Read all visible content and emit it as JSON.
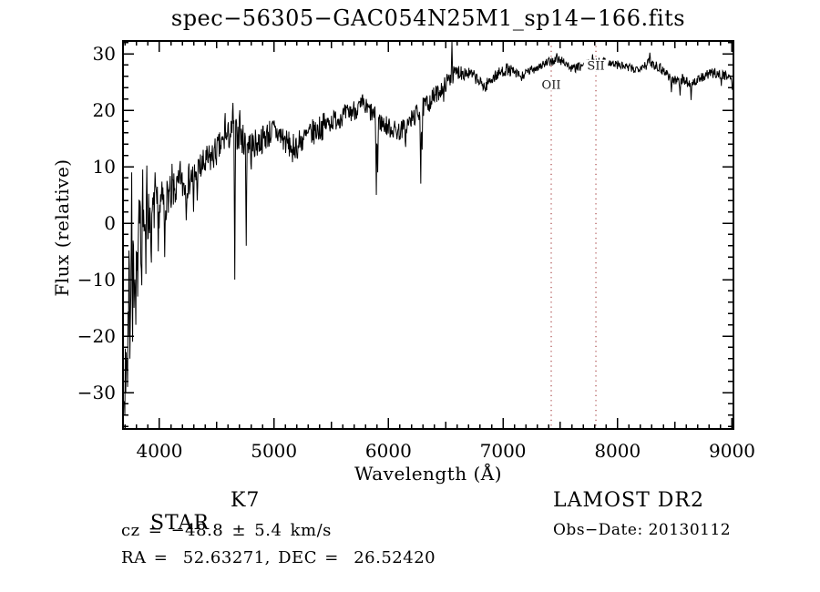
{
  "title": "spec−56305−GAC054N25M1_sp14−166.fits",
  "annotations": {
    "object_class": "STAR",
    "subclass": "K7",
    "survey": "LAMOST DR2",
    "cz": "cz = −48.8 ± 5.4 km/s",
    "obs_date": "Obs−Date: 20130112",
    "radec": "RA =  52.63271, DEC =  26.52420"
  },
  "chart_data": {
    "type": "line",
    "title": "spec−56305−GAC054N25M1_sp14−166.fits",
    "xlabel": "Wavelength (Å)",
    "ylabel": "Flux (relative)",
    "xlim": [
      3682,
      9012
    ],
    "ylim": [
      -36.45,
      32.26
    ],
    "grid": false,
    "background": "#ffffff",
    "frame_color": "#000000",
    "line_color": "#000000",
    "marker_color": "#a03434",
    "marker_label_color": "#1a1a1a",
    "x_major_ticks": [
      {
        "v": 4000,
        "label": "4000"
      },
      {
        "v": 5000,
        "label": "5000"
      },
      {
        "v": 6000,
        "label": "6000"
      },
      {
        "v": 7000,
        "label": "7000"
      },
      {
        "v": 8000,
        "label": "8000"
      },
      {
        "v": 9000,
        "label": "9000"
      }
    ],
    "x_minor_step": 100,
    "x_mid_step": 500,
    "y_major_ticks": [
      {
        "v": 30,
        "label": "30"
      },
      {
        "v": 20,
        "label": "20"
      },
      {
        "v": 10,
        "label": "10"
      },
      {
        "v": 0,
        "label": "0"
      },
      {
        "v": -10,
        "label": "−10"
      },
      {
        "v": -20,
        "label": "−20"
      },
      {
        "v": -30,
        "label": "−30"
      }
    ],
    "y_minor_step": 2,
    "line_markers": [
      {
        "label": "OII",
        "wavelength": 7421,
        "label_flux": 24.5
      },
      {
        "label": "SII",
        "wavelength": 7811,
        "label_flux": 27.9
      }
    ],
    "spectrum": {
      "range": [
        3690,
        9005
      ],
      "sample_step": 4,
      "noise_seed": 7,
      "envelope": [
        [
          3690,
          -13
        ],
        [
          3705,
          -12
        ],
        [
          3720,
          -9
        ],
        [
          3750,
          -6
        ],
        [
          3790,
          -3.5
        ],
        [
          3830,
          -1.5
        ],
        [
          3870,
          0
        ],
        [
          3920,
          1.5
        ],
        [
          3970,
          2.5
        ],
        [
          4020,
          3.5
        ],
        [
          4080,
          5
        ],
        [
          4150,
          6
        ],
        [
          4250,
          7.5
        ],
        [
          4350,
          9.5
        ],
        [
          4450,
          11.5
        ],
        [
          4550,
          14
        ],
        [
          4620,
          15.8
        ],
        [
          4680,
          15.8
        ],
        [
          4750,
          14.3
        ],
        [
          4820,
          13.8
        ],
        [
          4880,
          14.5
        ],
        [
          4950,
          15.8
        ],
        [
          5000,
          16.3
        ],
        [
          5060,
          15.5
        ],
        [
          5120,
          14
        ],
        [
          5180,
          13.6
        ],
        [
          5250,
          14.8
        ],
        [
          5320,
          15.8
        ],
        [
          5400,
          16.8
        ],
        [
          5480,
          17.8
        ],
        [
          5560,
          18.6
        ],
        [
          5640,
          19.3
        ],
        [
          5720,
          20.3
        ],
        [
          5780,
          20.6
        ],
        [
          5840,
          19.8
        ],
        [
          5890,
          18.5
        ],
        [
          5950,
          17.6
        ],
        [
          6020,
          16.8
        ],
        [
          6090,
          16.2
        ],
        [
          6150,
          17
        ],
        [
          6220,
          18.8
        ],
        [
          6290,
          20.2
        ],
        [
          6360,
          21.6
        ],
        [
          6430,
          23
        ],
        [
          6500,
          24.8
        ],
        [
          6560,
          26.2
        ],
        [
          6620,
          26.9
        ],
        [
          6700,
          26.6
        ],
        [
          6760,
          25.8
        ],
        [
          6810,
          24.6
        ],
        [
          6850,
          24.4
        ],
        [
          6900,
          25.6
        ],
        [
          6960,
          26.4
        ],
        [
          7030,
          27.3
        ],
        [
          7100,
          26.6
        ],
        [
          7160,
          26
        ],
        [
          7230,
          26.9
        ],
        [
          7300,
          27.7
        ],
        [
          7380,
          28.3
        ],
        [
          7460,
          28.9
        ],
        [
          7530,
          28.7
        ],
        [
          7600,
          27.3
        ],
        [
          7660,
          27.6
        ],
        [
          7730,
          28.2
        ],
        [
          7800,
          28.4
        ],
        [
          7870,
          28.7
        ],
        [
          7940,
          28.3
        ],
        [
          8010,
          28
        ],
        [
          8080,
          27.6
        ],
        [
          8150,
          27.2
        ],
        [
          8230,
          28
        ],
        [
          8300,
          28.4
        ],
        [
          8370,
          27.6
        ],
        [
          8440,
          26.3
        ],
        [
          8500,
          25.2
        ],
        [
          8560,
          25.6
        ],
        [
          8620,
          24.8
        ],
        [
          8680,
          25
        ],
        [
          8740,
          25.8
        ],
        [
          8800,
          26.4
        ],
        [
          8860,
          26.6
        ],
        [
          8920,
          26.2
        ],
        [
          8970,
          26.3
        ],
        [
          9010,
          25
        ]
      ],
      "noise_segments": [
        [
          3690,
          3715,
          19
        ],
        [
          3715,
          3755,
          13
        ],
        [
          3755,
          3800,
          9
        ],
        [
          3800,
          3860,
          6.5
        ],
        [
          3860,
          3940,
          5
        ],
        [
          3940,
          4060,
          4
        ],
        [
          4060,
          4250,
          3.2
        ],
        [
          4250,
          4450,
          3
        ],
        [
          4450,
          4750,
          2.8
        ],
        [
          4750,
          5100,
          2.6
        ],
        [
          5100,
          5450,
          2.4
        ],
        [
          5450,
          5900,
          1.9
        ],
        [
          5900,
          6420,
          1.8
        ],
        [
          6420,
          6700,
          1.5
        ],
        [
          6700,
          7100,
          1.1
        ],
        [
          7100,
          7550,
          0.85
        ],
        [
          7550,
          8250,
          0.8
        ],
        [
          8250,
          8600,
          1.0
        ],
        [
          8600,
          9012,
          0.9
        ]
      ],
      "spikes": [
        [
          3697,
          -34
        ],
        [
          3706,
          -30
        ],
        [
          3713,
          -26
        ],
        [
          3722,
          -29
        ],
        [
          3731,
          -20
        ],
        [
          3736,
          8
        ],
        [
          3741,
          -24
        ],
        [
          3752,
          -17
        ],
        [
          3758,
          9
        ],
        [
          3764,
          -21
        ],
        [
          3772,
          7
        ],
        [
          3778,
          -15
        ],
        [
          3793,
          -18
        ],
        [
          3810,
          -13
        ],
        [
          3845,
          -11
        ],
        [
          3852,
          9.5
        ],
        [
          3880,
          -9
        ],
        [
          3888,
          10.2
        ],
        [
          3930,
          -7
        ],
        [
          3960,
          9
        ],
        [
          3990,
          -5
        ],
        [
          4045,
          -6
        ],
        [
          4105,
          -3
        ],
        [
          4110,
          10.5
        ],
        [
          4180,
          11
        ],
        [
          4232,
          0.5
        ],
        [
          4296,
          2
        ],
        [
          4330,
          4
        ],
        [
          4575,
          19.5
        ],
        [
          4640,
          21.3
        ],
        [
          4658,
          -10
        ],
        [
          4700,
          20
        ],
        [
          4756,
          -4
        ],
        [
          4800,
          9.5
        ],
        [
          5160,
          10.8
        ],
        [
          5205,
          11.5
        ],
        [
          5775,
          22.8
        ],
        [
          5893,
          5
        ],
        [
          5905,
          9
        ],
        [
          6150,
          13.5
        ],
        [
          6281,
          7
        ],
        [
          6293,
          13
        ],
        [
          6480,
          21.5
        ],
        [
          6553,
          32.1
        ],
        [
          6846,
          23.3
        ],
        [
          7160,
          25.2
        ],
        [
          7470,
          30.1
        ],
        [
          7780,
          29.9
        ],
        [
          8280,
          30.2
        ],
        [
          8470,
          23.2
        ],
        [
          8545,
          22.6
        ],
        [
          8640,
          21.8
        ],
        [
          8905,
          24.3
        ],
        [
          9000,
          23.6
        ]
      ]
    }
  }
}
